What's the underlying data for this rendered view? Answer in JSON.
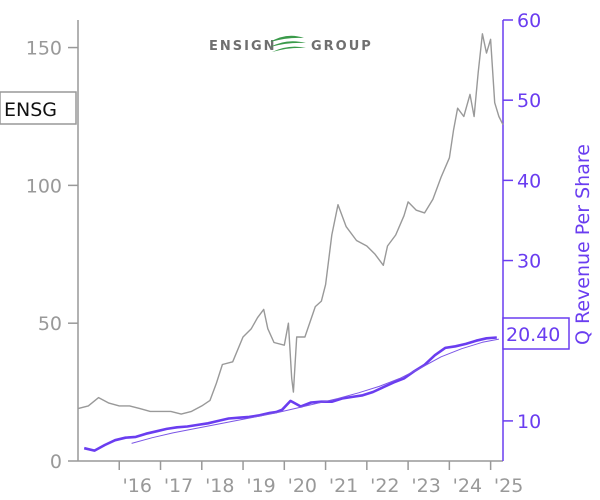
{
  "ticker": "ENSG",
  "logo": {
    "text_left": "ENSIGN",
    "text_right": "GROUP"
  },
  "colors": {
    "price": "#999999",
    "revenue": "#6a3df0",
    "revenue_trend": "#7b55e6",
    "left_axis": "#999999",
    "right_axis": "#6a3df0",
    "logo_green": "#3a9a4a"
  },
  "chart_data": {
    "type": "line",
    "ylabel_right": "Q Revenue Per Share",
    "current_value_label": "20.40",
    "x_ticks": [
      "'16",
      "'17",
      "'18",
      "'19",
      "'20",
      "'21",
      "'22",
      "'23",
      "'24",
      "'25"
    ],
    "x_tick_values": [
      2016.0,
      2017.0,
      2018.0,
      2019.0,
      2020.0,
      2021.0,
      2022.0,
      2023.0,
      2024.0,
      2025.0
    ],
    "xlim": [
      2015.0,
      2025.3
    ],
    "y_left": {
      "ticks": [
        "0",
        "50",
        "100",
        "150"
      ],
      "tick_values": [
        0,
        50,
        100,
        150
      ],
      "lim": [
        0,
        160
      ]
    },
    "y_right": {
      "ticks": [
        "10",
        "20",
        "30",
        "40",
        "50",
        "60"
      ],
      "tick_values": [
        10,
        20,
        30,
        40,
        50,
        60
      ],
      "lim": [
        5,
        60
      ]
    },
    "series": [
      {
        "axis": "left",
        "role": "stock price",
        "x": [
          2015.0,
          2015.25,
          2015.5,
          2015.75,
          2016.0,
          2016.25,
          2016.5,
          2016.75,
          2017.0,
          2017.25,
          2017.5,
          2017.75,
          2018.0,
          2018.2,
          2018.35,
          2018.5,
          2018.75,
          2019.0,
          2019.2,
          2019.35,
          2019.5,
          2019.6,
          2019.75,
          2020.0,
          2020.1,
          2020.18,
          2020.22,
          2020.3,
          2020.5,
          2020.75,
          2020.9,
          2021.0,
          2021.15,
          2021.3,
          2021.5,
          2021.75,
          2022.0,
          2022.2,
          2022.4,
          2022.5,
          2022.7,
          2022.9,
          2023.0,
          2023.2,
          2023.4,
          2023.6,
          2023.8,
          2024.0,
          2024.1,
          2024.2,
          2024.35,
          2024.5,
          2024.6,
          2024.7,
          2024.8,
          2024.9,
          2025.0,
          2025.1,
          2025.2,
          2025.3
        ],
        "y": [
          19,
          20,
          23,
          21,
          20,
          20,
          19,
          18,
          18,
          18,
          17,
          18,
          20,
          22,
          28,
          35,
          36,
          45,
          48,
          52,
          55,
          48,
          43,
          42,
          50,
          30,
          25,
          45,
          45,
          56,
          58,
          64,
          82,
          93,
          85,
          80,
          78,
          75,
          71,
          78,
          82,
          89,
          94,
          91,
          90,
          95,
          103,
          110,
          120,
          128,
          125,
          133,
          125,
          141,
          155,
          148,
          153,
          130,
          125,
          122
        ]
      },
      {
        "axis": "right",
        "role": "quarterly revenue per share",
        "x": [
          2015.15,
          2015.4,
          2015.65,
          2015.9,
          2016.15,
          2016.4,
          2016.65,
          2016.9,
          2017.15,
          2017.4,
          2017.65,
          2017.9,
          2018.15,
          2018.4,
          2018.65,
          2018.9,
          2019.15,
          2019.4,
          2019.65,
          2019.8,
          2019.95,
          2020.15,
          2020.4,
          2020.65,
          2020.9,
          2021.15,
          2021.4,
          2021.65,
          2021.9,
          2022.15,
          2022.4,
          2022.65,
          2022.9,
          2023.15,
          2023.4,
          2023.65,
          2023.9,
          2024.15,
          2024.4,
          2024.65,
          2024.9,
          2025.15
        ],
        "y": [
          6.6,
          6.3,
          7.0,
          7.6,
          7.9,
          8.0,
          8.4,
          8.7,
          9.0,
          9.2,
          9.3,
          9.5,
          9.7,
          10.0,
          10.3,
          10.4,
          10.5,
          10.7,
          11.0,
          11.1,
          11.4,
          12.5,
          11.8,
          12.3,
          12.4,
          12.4,
          12.8,
          13.0,
          13.2,
          13.6,
          14.2,
          14.8,
          15.3,
          16.2,
          17.0,
          18.2,
          19.1,
          19.3,
          19.6,
          20.0,
          20.3,
          20.4
        ]
      },
      {
        "axis": "right",
        "role": "revenue per share trend",
        "x": [
          2016.3,
          2016.8,
          2017.3,
          2017.8,
          2018.3,
          2018.8,
          2019.3,
          2019.8,
          2020.3,
          2020.8,
          2021.3,
          2021.8,
          2022.3,
          2022.8,
          2023.3,
          2023.8,
          2024.3,
          2024.8,
          2025.2
        ],
        "y": [
          7.2,
          7.9,
          8.5,
          9.0,
          9.5,
          10.0,
          10.5,
          11.0,
          11.6,
          12.2,
          12.8,
          13.5,
          14.3,
          15.3,
          16.6,
          18.0,
          19.0,
          19.8,
          20.2
        ]
      }
    ]
  }
}
